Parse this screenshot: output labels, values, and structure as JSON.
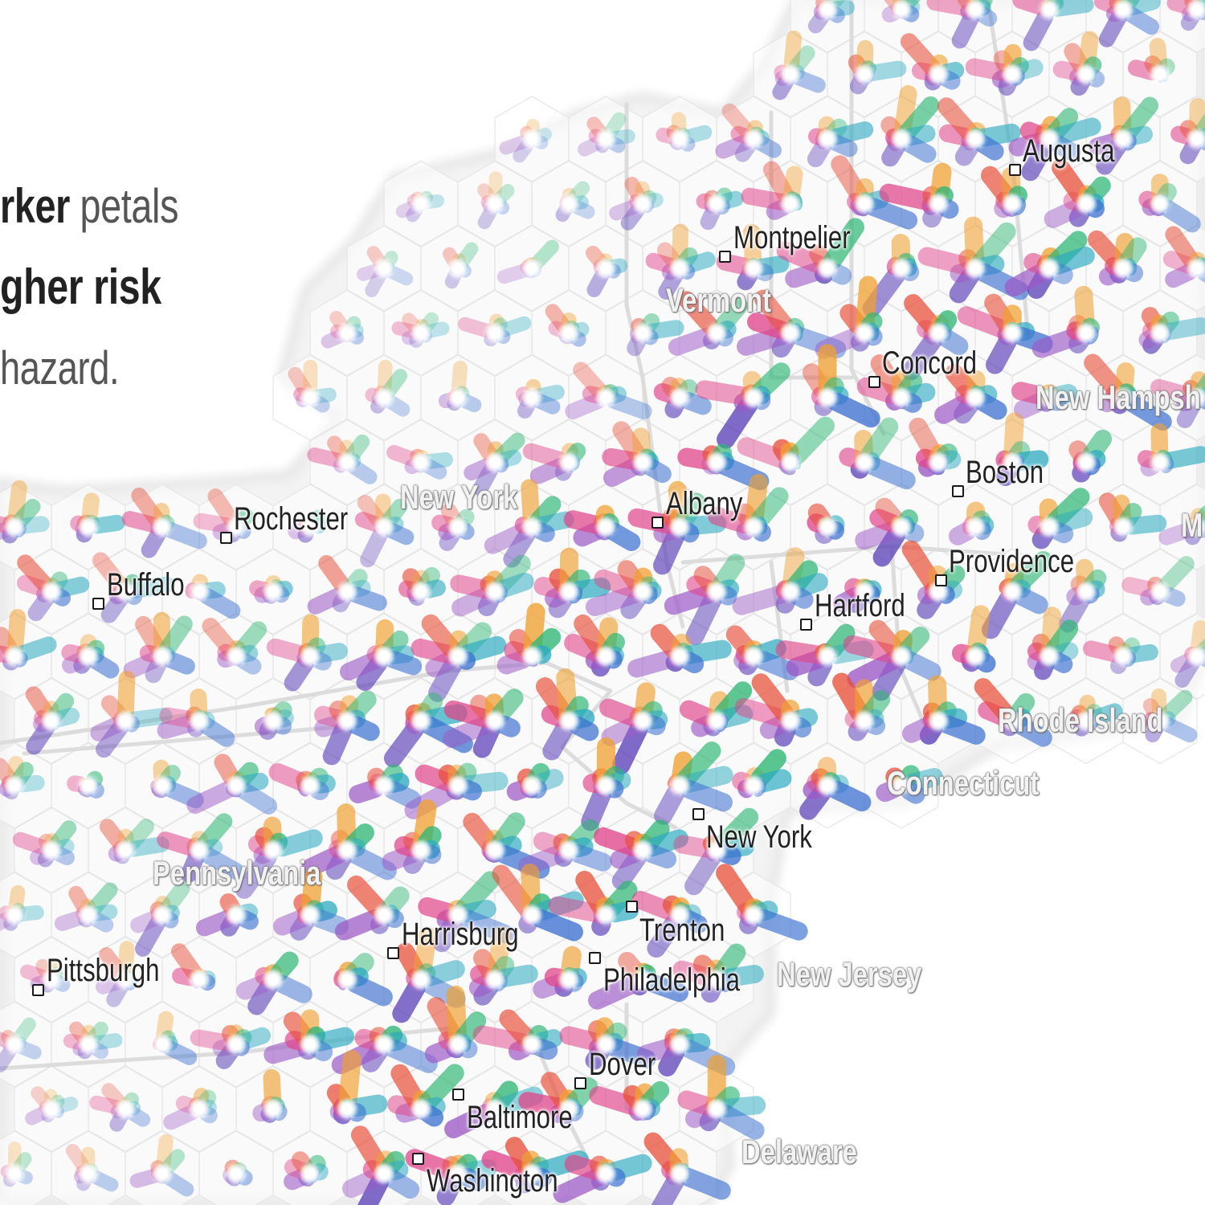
{
  "legend": {
    "line1": {
      "bold": "rker",
      "light": " petals"
    },
    "line2": {
      "bold": "gher risk"
    },
    "line3": {
      "light": "hazard."
    }
  },
  "cities": [
    {
      "id": "augusta",
      "name": "Augusta"
    },
    {
      "id": "montpelier",
      "name": "Montpelier"
    },
    {
      "id": "concord",
      "name": "Concord"
    },
    {
      "id": "boston",
      "name": "Boston"
    },
    {
      "id": "rochester",
      "name": "Rochester"
    },
    {
      "id": "albany",
      "name": "Albany"
    },
    {
      "id": "buffalo",
      "name": "Buffalo"
    },
    {
      "id": "providence",
      "name": "Providence"
    },
    {
      "id": "hartford",
      "name": "Hartford"
    },
    {
      "id": "new-york-city",
      "name": "New York"
    },
    {
      "id": "trenton",
      "name": "Trenton"
    },
    {
      "id": "harrisburg",
      "name": "Harrisburg"
    },
    {
      "id": "philadelphia",
      "name": "Philadelphia"
    },
    {
      "id": "pittsburgh",
      "name": "Pittsburgh"
    },
    {
      "id": "dover",
      "name": "Dover"
    },
    {
      "id": "baltimore",
      "name": "Baltimore"
    },
    {
      "id": "washington",
      "name": "Washington"
    }
  ],
  "states": [
    {
      "id": "vermont",
      "name": "Vermont"
    },
    {
      "id": "new-hampshire",
      "name": "New Hampsh"
    },
    {
      "id": "new-york-state",
      "name": "New York"
    },
    {
      "id": "massachusetts",
      "name": "M"
    },
    {
      "id": "rhode-island",
      "name": "Rhode Island"
    },
    {
      "id": "connecticut",
      "name": "Connecticut"
    },
    {
      "id": "pennsylvania",
      "name": "Pennsylvania"
    },
    {
      "id": "new-jersey",
      "name": "New Jersey"
    },
    {
      "id": "delaware",
      "name": "Delaware"
    }
  ],
  "petal_colors": [
    "#5b3fb8",
    "#9b59c6",
    "#e0448a",
    "#e8503a",
    "#f0a030",
    "#2bb673",
    "#2aa9c0",
    "#3a6fd0"
  ]
}
